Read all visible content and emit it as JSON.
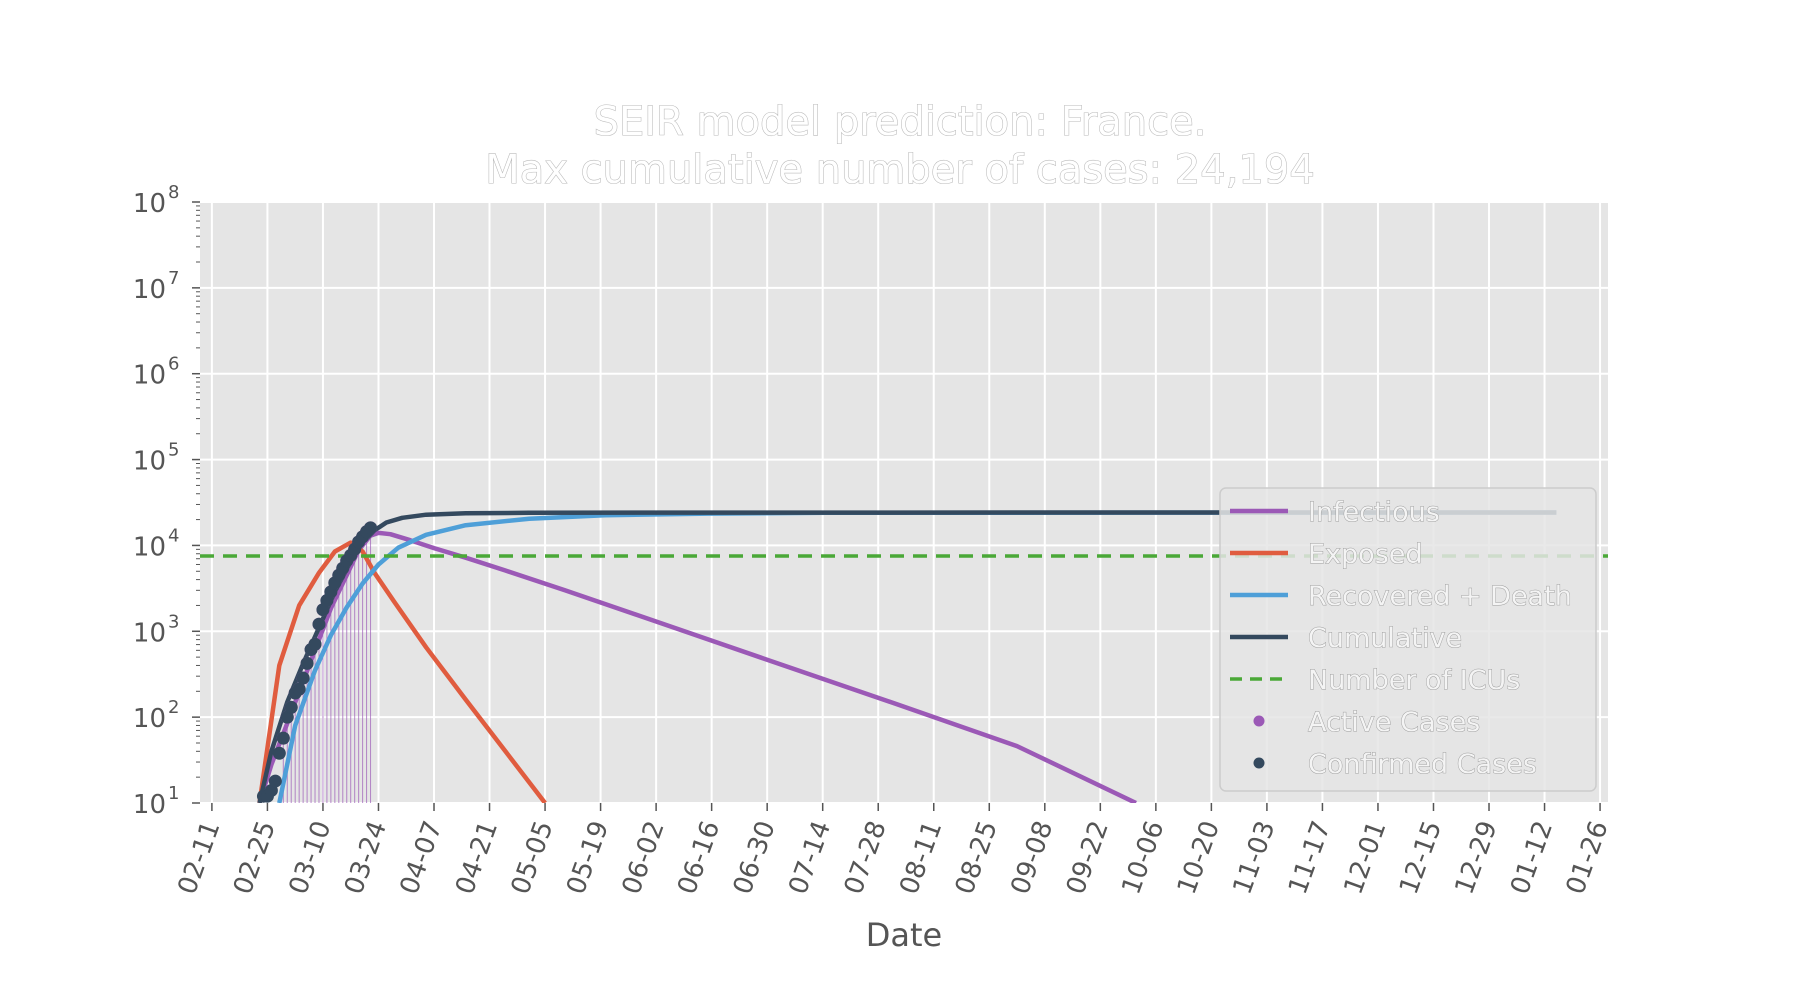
{
  "chart_data": {
    "type": "line",
    "title": "SEIR model prediction: France.",
    "subtitle": "Max cumulative number of cases: 24,194",
    "xlabel": "Date",
    "ylabel": "",
    "yscale": "log",
    "ylim": [
      10,
      100000000
    ],
    "xlim": [
      "2020-02-08",
      "2021-01-28"
    ],
    "x_ticks": [
      "02-11",
      "02-25",
      "03-10",
      "03-24",
      "04-07",
      "04-21",
      "05-05",
      "05-19",
      "06-02",
      "06-16",
      "06-30",
      "07-14",
      "07-28",
      "08-11",
      "08-25",
      "09-08",
      "09-22",
      "10-06",
      "10-20",
      "11-03",
      "11-17",
      "12-01",
      "12-15",
      "12-29",
      "01-12",
      "01-26"
    ],
    "x_tick_dates": [
      "2020-02-11",
      "2020-02-25",
      "2020-03-10",
      "2020-03-24",
      "2020-04-07",
      "2020-04-21",
      "2020-05-05",
      "2020-05-19",
      "2020-06-02",
      "2020-06-16",
      "2020-06-30",
      "2020-07-14",
      "2020-07-28",
      "2020-08-11",
      "2020-08-25",
      "2020-09-08",
      "2020-09-22",
      "2020-10-06",
      "2020-10-20",
      "2020-11-03",
      "2020-11-17",
      "2020-12-01",
      "2020-12-15",
      "2020-12-29",
      "2021-01-12",
      "2021-01-26"
    ],
    "y_ticks": [
      {
        "base": "10",
        "exp": "1",
        "value": 10
      },
      {
        "base": "10",
        "exp": "2",
        "value": 100
      },
      {
        "base": "10",
        "exp": "3",
        "value": 1000
      },
      {
        "base": "10",
        "exp": "4",
        "value": 10000
      },
      {
        "base": "10",
        "exp": "5",
        "value": 100000
      },
      {
        "base": "10",
        "exp": "6",
        "value": 1000000
      },
      {
        "base": "10",
        "exp": "7",
        "value": 10000000
      },
      {
        "base": "10",
        "exp": "8",
        "value": 100000000
      }
    ],
    "grid": true,
    "legend_position": "right",
    "series": [
      {
        "name": "Infectious",
        "color": "#9b59b6",
        "style": "solid",
        "x": [
          "2020-02-23",
          "2020-02-26",
          "2020-03-01",
          "2020-03-05",
          "2020-03-09",
          "2020-03-12",
          "2020-03-16",
          "2020-03-19",
          "2020-03-22",
          "2020-03-24",
          "2020-03-27",
          "2020-04-01",
          "2020-04-07",
          "2020-04-15",
          "2020-04-25",
          "2020-05-10",
          "2020-06-01",
          "2020-07-01",
          "2020-08-01",
          "2020-09-01",
          "2020-10-01"
        ],
        "y": [
          10,
          28,
          85,
          260,
          800,
          1850,
          4500,
          8800,
          13000,
          14000,
          13500,
          11500,
          9300,
          7200,
          5100,
          3000,
          1350,
          450,
          145,
          46,
          10
        ]
      },
      {
        "name": "Exposed",
        "color": "#e05c3f",
        "style": "solid",
        "x": [
          "2020-02-23",
          "2020-02-28",
          "2020-03-04",
          "2020-03-09",
          "2020-03-13",
          "2020-03-17",
          "2020-03-20",
          "2020-03-23",
          "2020-03-28",
          "2020-04-05",
          "2020-04-15",
          "2020-04-25",
          "2020-05-05"
        ],
        "y": [
          10,
          400,
          2000,
          4800,
          8500,
          10800,
          8500,
          4800,
          2200,
          650,
          160,
          40,
          10
        ]
      },
      {
        "name": "Recovered + Death",
        "color": "#4e9fd8",
        "style": "solid",
        "x": [
          "2020-02-28",
          "2020-03-03",
          "2020-03-08",
          "2020-03-12",
          "2020-03-16",
          "2020-03-20",
          "2020-03-24",
          "2020-03-29",
          "2020-04-05",
          "2020-04-15",
          "2020-05-01",
          "2020-05-20",
          "2020-06-15",
          "2020-07-15",
          "2021-01-15"
        ],
        "y": [
          10,
          80,
          350,
          900,
          1900,
          3600,
          6000,
          9400,
          13300,
          17200,
          20500,
          22500,
          23500,
          24000,
          24194
        ]
      },
      {
        "name": "Cumulative",
        "color": "#34495e",
        "style": "solid",
        "x": [
          "2020-02-23",
          "2020-02-26",
          "2020-03-01",
          "2020-03-05",
          "2020-03-09",
          "2020-03-13",
          "2020-03-17",
          "2020-03-20",
          "2020-03-23",
          "2020-03-26",
          "2020-03-30",
          "2020-04-05",
          "2020-04-15",
          "2020-05-01",
          "2020-06-01",
          "2021-01-15"
        ],
        "y": [
          10,
          40,
          150,
          420,
          1100,
          2900,
          6500,
          10800,
          15000,
          18500,
          21000,
          22800,
          23700,
          24000,
          24150,
          24194
        ]
      },
      {
        "name": "Number of ICUs",
        "color": "#4aa837",
        "style": "dashed",
        "x": [
          "2020-02-08",
          "2021-01-28"
        ],
        "y": [
          7540,
          7540
        ]
      }
    ],
    "scatter": [
      {
        "name": "Active Cases",
        "color": "#9b59b6",
        "x": [
          "2020-02-29",
          "2020-03-01",
          "2020-03-02",
          "2020-03-03",
          "2020-03-04",
          "2020-03-05",
          "2020-03-06",
          "2020-03-07",
          "2020-03-08",
          "2020-03-09",
          "2020-03-10",
          "2020-03-11",
          "2020-03-12",
          "2020-03-13",
          "2020-03-14",
          "2020-03-15",
          "2020-03-16",
          "2020-03-17",
          "2020-03-18",
          "2020-03-19",
          "2020-03-20",
          "2020-03-21",
          "2020-03-22"
        ],
        "y": [
          57,
          100,
          130,
          191,
          212,
          285,
          423,
          613,
          706,
          1209,
          1784,
          2281,
          2876,
          3661,
          4499,
          5423,
          6633,
          7652,
          9043,
          10995,
          12612,
          14459,
          16018
        ]
      },
      {
        "name": "Confirmed Cases",
        "color": "#34495e",
        "x": [
          "2020-02-24",
          "2020-02-25",
          "2020-02-26",
          "2020-02-27",
          "2020-02-28",
          "2020-02-29",
          "2020-03-01",
          "2020-03-02",
          "2020-03-03",
          "2020-03-04",
          "2020-03-05",
          "2020-03-06",
          "2020-03-07",
          "2020-03-08",
          "2020-03-09",
          "2020-03-10",
          "2020-03-11",
          "2020-03-12",
          "2020-03-13",
          "2020-03-14",
          "2020-03-15",
          "2020-03-16",
          "2020-03-17",
          "2020-03-18",
          "2020-03-19",
          "2020-03-20",
          "2020-03-21",
          "2020-03-22"
        ],
        "y": [
          12,
          12,
          14,
          18,
          38,
          57,
          100,
          130,
          191,
          212,
          285,
          423,
          613,
          706,
          1209,
          1784,
          2281,
          2876,
          3661,
          4499,
          5423,
          6633,
          7652,
          9043,
          10995,
          12612,
          14459,
          16018
        ]
      }
    ],
    "legend": [
      {
        "label": "Infectious",
        "kind": "line",
        "color": "#9b59b6",
        "dash": false
      },
      {
        "label": "Exposed",
        "kind": "line",
        "color": "#e05c3f",
        "dash": false
      },
      {
        "label": "Recovered + Death",
        "kind": "line",
        "color": "#4e9fd8",
        "dash": false
      },
      {
        "label": "Cumulative",
        "kind": "line",
        "color": "#34495e",
        "dash": false
      },
      {
        "label": "Number of ICUs",
        "kind": "line",
        "color": "#4aa837",
        "dash": true
      },
      {
        "label": "Active Cases",
        "kind": "marker",
        "color": "#9b59b6",
        "dash": false
      },
      {
        "label": "Confirmed Cases",
        "kind": "marker",
        "color": "#34495e",
        "dash": false
      }
    ],
    "colors": {
      "plot_background": "#e5e5e5",
      "grid": "#ffffff",
      "tick_text": "#555555"
    }
  }
}
